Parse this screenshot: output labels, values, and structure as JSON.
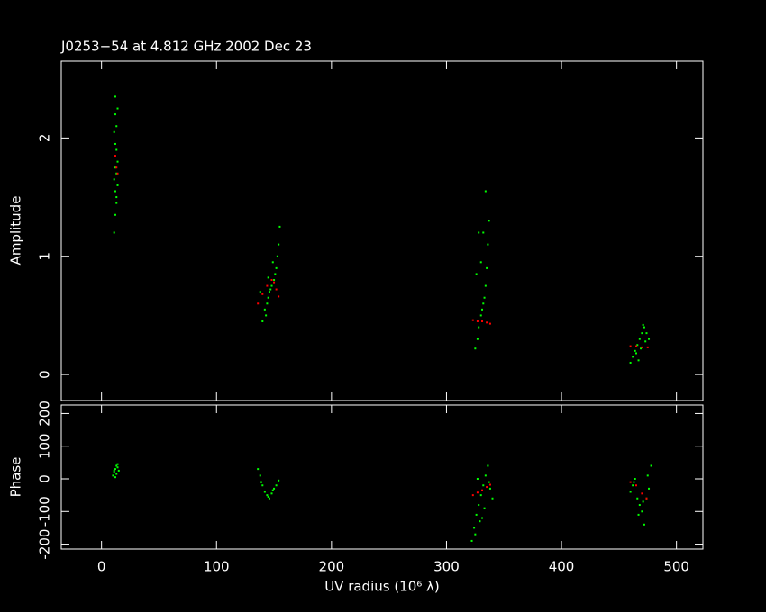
{
  "chart_data": [
    {
      "type": "scatter",
      "title": "J0253−54 at 4.812 GHz 2002 Dec 23",
      "ylabel": "Amplitude",
      "xlim": [
        -35,
        523
      ],
      "xticks": [
        0,
        100,
        200,
        300,
        400,
        500
      ],
      "ylim": [
        -0.22,
        2.65
      ],
      "yticks": [
        0,
        1,
        2
      ],
      "series": [
        {
          "color": "#00ff00",
          "x": [
            11,
            12,
            13,
            12,
            14,
            11,
            13,
            12,
            14,
            13,
            12,
            11,
            13,
            12,
            14,
            12,
            13,
            140,
            142,
            144,
            145,
            146,
            148,
            150,
            151,
            152,
            153,
            154,
            155,
            143,
            147,
            149,
            138,
            145,
            325,
            327,
            328,
            330,
            331,
            332,
            333,
            334,
            335,
            336,
            337,
            328,
            330,
            332,
            326,
            334,
            460,
            462,
            464,
            466,
            468,
            470,
            472,
            474,
            476,
            465,
            469,
            473,
            467,
            471
          ],
          "values": [
            1.2,
            1.35,
            1.45,
            1.55,
            1.6,
            1.65,
            1.7,
            1.75,
            1.8,
            1.9,
            1.95,
            2.05,
            2.1,
            2.2,
            2.25,
            2.35,
            1.5,
            0.45,
            0.55,
            0.6,
            0.65,
            0.7,
            0.75,
            0.8,
            0.85,
            0.9,
            1.0,
            1.1,
            1.25,
            0.5,
            0.72,
            0.95,
            0.7,
            0.82,
            0.22,
            0.3,
            0.4,
            0.5,
            0.55,
            0.6,
            0.65,
            0.75,
            0.9,
            1.1,
            1.3,
            1.2,
            0.95,
            1.2,
            0.85,
            1.55,
            0.1,
            0.15,
            0.2,
            0.25,
            0.3,
            0.35,
            0.4,
            0.35,
            0.3,
            0.18,
            0.22,
            0.28,
            0.12,
            0.42
          ]
        },
        {
          "color": "#ff0000",
          "x": [
            12,
            13,
            14,
            136,
            140,
            144,
            148,
            150,
            152,
            154,
            323,
            327,
            331,
            335,
            338,
            460,
            465,
            470,
            475
          ],
          "values": [
            1.85,
            1.75,
            1.7,
            0.6,
            0.68,
            0.75,
            0.8,
            0.78,
            0.72,
            0.66,
            0.46,
            0.45,
            0.45,
            0.44,
            0.43,
            0.24,
            0.24,
            0.23,
            0.23
          ]
        }
      ]
    },
    {
      "type": "scatter",
      "xlabel": "UV radius  (10⁶ λ)",
      "ylabel": "Phase",
      "xlim": [
        -35,
        523
      ],
      "xticks": [
        0,
        100,
        200,
        300,
        400,
        500
      ],
      "ylim": [
        -215,
        226
      ],
      "yticks": [
        -200,
        -100,
        0,
        100,
        200
      ],
      "series": [
        {
          "color": "#00ff00",
          "x": [
            10,
            11,
            12,
            13,
            14,
            15,
            12,
            13,
            11,
            14,
            136,
            138,
            140,
            142,
            144,
            146,
            148,
            150,
            152,
            154,
            139,
            145,
            149,
            322,
            324,
            326,
            328,
            330,
            332,
            334,
            336,
            338,
            340,
            325,
            329,
            333,
            337,
            327,
            331,
            460,
            462,
            464,
            466,
            468,
            470,
            472,
            474,
            476,
            478,
            463,
            467,
            471,
            475
          ],
          "values": [
            10,
            20,
            30,
            40,
            35,
            25,
            5,
            15,
            25,
            45,
            30,
            10,
            -20,
            -40,
            -50,
            -60,
            -45,
            -30,
            -20,
            -5,
            -10,
            -55,
            -35,
            -190,
            -150,
            -110,
            -80,
            -50,
            -20,
            10,
            40,
            -30,
            -60,
            -170,
            -130,
            -90,
            -10,
            0,
            -120,
            -40,
            -20,
            0,
            -60,
            -80,
            -100,
            -140,
            -60,
            -30,
            40,
            -10,
            -110,
            -70,
            10
          ]
        },
        {
          "color": "#ff0000",
          "x": [
            323,
            327,
            331,
            335,
            338,
            460,
            465,
            470,
            474
          ],
          "values": [
            -50,
            -42,
            -35,
            -25,
            -18,
            -10,
            -20,
            -45,
            -60
          ]
        }
      ]
    }
  ]
}
